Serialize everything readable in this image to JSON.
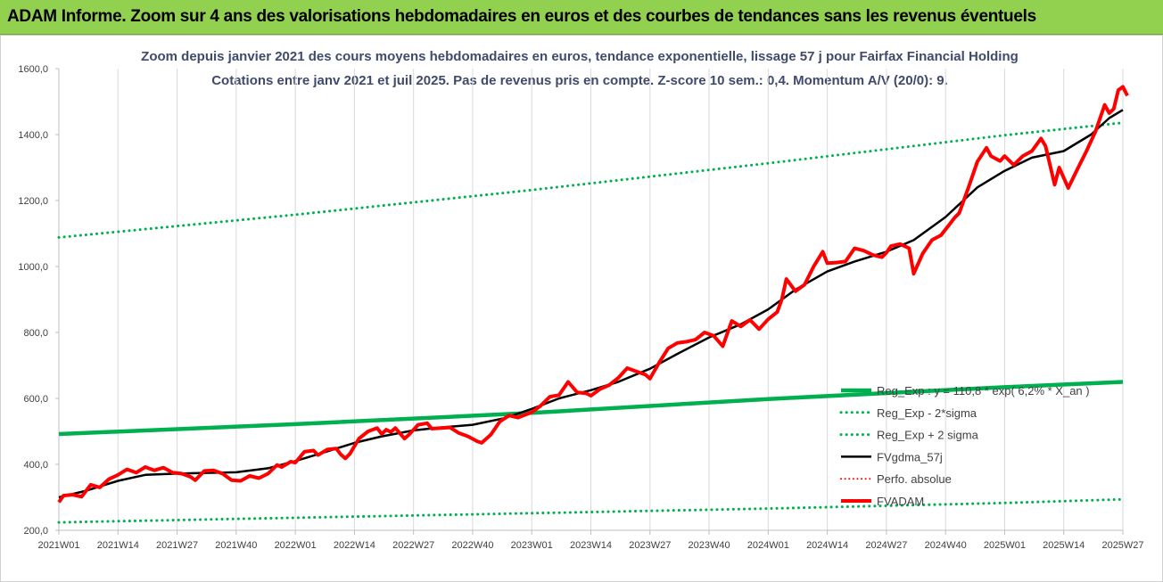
{
  "header": {
    "title": "ADAM Informe. Zoom sur 4 ans des valorisations hebdomadaires en euros et des courbes de tendances sans les revenus éventuels"
  },
  "colors": {
    "header_bg": "#92d050",
    "regression": "#00b050",
    "smoothing": "#000000",
    "price": "#ff0000",
    "grid": "#d9d9d9"
  },
  "chart_data": {
    "type": "line",
    "title": "Zoom depuis janvier 2021 des cours moyens hebdomadaires en euros, tendance exponentielle, lissage 57 j pour Fairfax Financial Holding",
    "subtitle": "Cotations entre janv 2021 et juil 2025. Pas de revenus pris en compte. Z-score 10 sem.: 0,4. Momentum A/V (20/0): 9.",
    "ylim": [
      200,
      1600
    ],
    "yticks": [
      "200,0",
      "400,0",
      "600,0",
      "800,0",
      "1000,0",
      "1200,0",
      "1400,0",
      "1600,0"
    ],
    "xticks": [
      "2021W01",
      "2021W14",
      "2021W27",
      "2021W40",
      "2022W01",
      "2022W14",
      "2022W27",
      "2022W40",
      "2023W01",
      "2023W14",
      "2023W27",
      "2023W40",
      "2024W01",
      "2024W14",
      "2024W27",
      "2024W40",
      "2025W01",
      "2025W14",
      "2025W27"
    ],
    "grid": "vertical",
    "legend_position": "bottom-right",
    "series": [
      {
        "name": "Reg_Exp : y = 110,8 * exp( 6,2% * X_an )",
        "style": "solid",
        "points": [
          [
            "2021W01",
            492
          ],
          [
            "2022W01",
            522
          ],
          [
            "2023W01",
            556
          ],
          [
            "2024W01",
            598
          ],
          [
            "2025W01",
            634
          ],
          [
            "2025W27",
            650
          ]
        ]
      },
      {
        "name": "Reg_Exp - 2*sigma",
        "style": "dotted",
        "points": [
          [
            "2021W01",
            224
          ],
          [
            "2022W01",
            238
          ],
          [
            "2023W01",
            252
          ],
          [
            "2024W01",
            266
          ],
          [
            "2025W01",
            283
          ],
          [
            "2025W27",
            294
          ]
        ]
      },
      {
        "name": "Reg_Exp + 2 sigma",
        "style": "dotted",
        "points": [
          [
            "2021W01",
            1088
          ],
          [
            "2022W01",
            1157
          ],
          [
            "2023W01",
            1232
          ],
          [
            "2024W01",
            1313
          ],
          [
            "2025W01",
            1398
          ],
          [
            "2025W27",
            1436
          ]
        ]
      },
      {
        "name": "FVgdma_57j",
        "style": "solid",
        "points": [
          [
            "2021W01",
            300
          ],
          [
            "2021W07",
            320
          ],
          [
            "2021W14",
            350
          ],
          [
            "2021W20",
            368
          ],
          [
            "2021W27",
            372
          ],
          [
            "2021W33",
            374
          ],
          [
            "2021W40",
            376
          ],
          [
            "2021W47",
            388
          ],
          [
            "2022W01",
            410
          ],
          [
            "2022W07",
            435
          ],
          [
            "2022W14",
            465
          ],
          [
            "2022W20",
            485
          ],
          [
            "2022W27",
            503
          ],
          [
            "2022W33",
            512
          ],
          [
            "2022W40",
            520
          ],
          [
            "2022W47",
            540
          ],
          [
            "2023W01",
            568
          ],
          [
            "2023W07",
            600
          ],
          [
            "2023W14",
            625
          ],
          [
            "2023W20",
            650
          ],
          [
            "2023W27",
            690
          ],
          [
            "2023W33",
            735
          ],
          [
            "2023W40",
            785
          ],
          [
            "2023W47",
            825
          ],
          [
            "2024W01",
            870
          ],
          [
            "2024W07",
            930
          ],
          [
            "2024W14",
            985
          ],
          [
            "2024W20",
            1015
          ],
          [
            "2024W27",
            1045
          ],
          [
            "2024W33",
            1080
          ],
          [
            "2024W40",
            1150
          ],
          [
            "2024W47",
            1240
          ],
          [
            "2025W01",
            1290
          ],
          [
            "2025W07",
            1330
          ],
          [
            "2025W14",
            1350
          ],
          [
            "2025W20",
            1400
          ],
          [
            "2025W24",
            1450
          ],
          [
            "2025W27",
            1475
          ]
        ]
      },
      {
        "name": "Perfo. absolue",
        "style": "dotted",
        "points": []
      },
      {
        "name": "FVADAM",
        "style": "solid-thick",
        "points": [
          [
            "2021W01",
            285
          ],
          [
            "2021W02",
            305
          ],
          [
            "2021W04",
            308
          ],
          [
            "2021W06",
            302
          ],
          [
            "2021W08",
            338
          ],
          [
            "2021W10",
            330
          ],
          [
            "2021W12",
            355
          ],
          [
            "2021W14",
            368
          ],
          [
            "2021W16",
            385
          ],
          [
            "2021W18",
            375
          ],
          [
            "2021W20",
            392
          ],
          [
            "2021W22",
            382
          ],
          [
            "2021W24",
            390
          ],
          [
            "2021W26",
            375
          ],
          [
            "2021W28",
            372
          ],
          [
            "2021W30",
            362
          ],
          [
            "2021W31",
            352
          ],
          [
            "2021W33",
            380
          ],
          [
            "2021W35",
            382
          ],
          [
            "2021W37",
            372
          ],
          [
            "2021W39",
            352
          ],
          [
            "2021W41",
            350
          ],
          [
            "2021W43",
            365
          ],
          [
            "2021W45",
            358
          ],
          [
            "2021W47",
            372
          ],
          [
            "2021W49",
            398
          ],
          [
            "2021W50",
            392
          ],
          [
            "2021W52",
            408
          ],
          [
            "2022W01",
            405
          ],
          [
            "2022W03",
            438
          ],
          [
            "2022W05",
            442
          ],
          [
            "2022W06",
            428
          ],
          [
            "2022W08",
            445
          ],
          [
            "2022W10",
            448
          ],
          [
            "2022W11",
            430
          ],
          [
            "2022W12",
            418
          ],
          [
            "2022W13",
            432
          ],
          [
            "2022W15",
            478
          ],
          [
            "2022W17",
            500
          ],
          [
            "2022W19",
            510
          ],
          [
            "2022W20",
            492
          ],
          [
            "2022W21",
            505
          ],
          [
            "2022W22",
            498
          ],
          [
            "2022W23",
            510
          ],
          [
            "2022W25",
            478
          ],
          [
            "2022W26",
            490
          ],
          [
            "2022W28",
            520
          ],
          [
            "2022W30",
            525
          ],
          [
            "2022W31",
            508
          ],
          [
            "2022W33",
            510
          ],
          [
            "2022W35",
            512
          ],
          [
            "2022W37",
            495
          ],
          [
            "2022W39",
            485
          ],
          [
            "2022W41",
            470
          ],
          [
            "2022W42",
            465
          ],
          [
            "2022W44",
            490
          ],
          [
            "2022W46",
            530
          ],
          [
            "2022W48",
            548
          ],
          [
            "2022W50",
            542
          ],
          [
            "2023W01",
            558
          ],
          [
            "2023W03",
            578
          ],
          [
            "2023W05",
            605
          ],
          [
            "2023W07",
            610
          ],
          [
            "2023W08",
            630
          ],
          [
            "2023W09",
            650
          ],
          [
            "2023W11",
            618
          ],
          [
            "2023W13",
            615
          ],
          [
            "2023W14",
            608
          ],
          [
            "2023W16",
            628
          ],
          [
            "2023W18",
            640
          ],
          [
            "2023W20",
            662
          ],
          [
            "2023W22",
            692
          ],
          [
            "2023W24",
            682
          ],
          [
            "2023W26",
            672
          ],
          [
            "2023W27",
            660
          ],
          [
            "2023W29",
            708
          ],
          [
            "2023W31",
            752
          ],
          [
            "2023W33",
            768
          ],
          [
            "2023W35",
            772
          ],
          [
            "2023W37",
            778
          ],
          [
            "2023W39",
            800
          ],
          [
            "2023W41",
            790
          ],
          [
            "2023W43",
            758
          ],
          [
            "2023W45",
            835
          ],
          [
            "2023W47",
            818
          ],
          [
            "2023W49",
            838
          ],
          [
            "2023W51",
            810
          ],
          [
            "2024W01",
            840
          ],
          [
            "2024W03",
            862
          ],
          [
            "2024W04",
            900
          ],
          [
            "2024W05",
            962
          ],
          [
            "2024W07",
            925
          ],
          [
            "2024W09",
            945
          ],
          [
            "2024W11",
            1000
          ],
          [
            "2024W13",
            1045
          ],
          [
            "2024W14",
            1010
          ],
          [
            "2024W16",
            1012
          ],
          [
            "2024W18",
            1015
          ],
          [
            "2024W20",
            1055
          ],
          [
            "2024W22",
            1048
          ],
          [
            "2024W24",
            1035
          ],
          [
            "2024W26",
            1028
          ],
          [
            "2024W27",
            1042
          ],
          [
            "2024W28",
            1062
          ],
          [
            "2024W30",
            1068
          ],
          [
            "2024W32",
            1055
          ],
          [
            "2024W33",
            978
          ],
          [
            "2024W35",
            1040
          ],
          [
            "2024W37",
            1080
          ],
          [
            "2024W39",
            1095
          ],
          [
            "2024W41",
            1130
          ],
          [
            "2024W42",
            1148
          ],
          [
            "2024W43",
            1162
          ],
          [
            "2024W45",
            1238
          ],
          [
            "2024W47",
            1318
          ],
          [
            "2024W49",
            1360
          ],
          [
            "2024W50",
            1335
          ],
          [
            "2024W52",
            1320
          ],
          [
            "2025W01",
            1335
          ],
          [
            "2025W03",
            1308
          ],
          [
            "2025W05",
            1335
          ],
          [
            "2025W07",
            1350
          ],
          [
            "2025W09",
            1388
          ],
          [
            "2025W10",
            1365
          ],
          [
            "2025W12",
            1248
          ],
          [
            "2025W13",
            1300
          ],
          [
            "2025W15",
            1238
          ],
          [
            "2025W17",
            1295
          ],
          [
            "2025W19",
            1350
          ],
          [
            "2025W21",
            1410
          ],
          [
            "2025W23",
            1490
          ],
          [
            "2025W24",
            1465
          ],
          [
            "2025W25",
            1478
          ],
          [
            "2025W26",
            1535
          ],
          [
            "2025W27",
            1545
          ],
          [
            "2025W28",
            1518
          ]
        ]
      }
    ]
  }
}
